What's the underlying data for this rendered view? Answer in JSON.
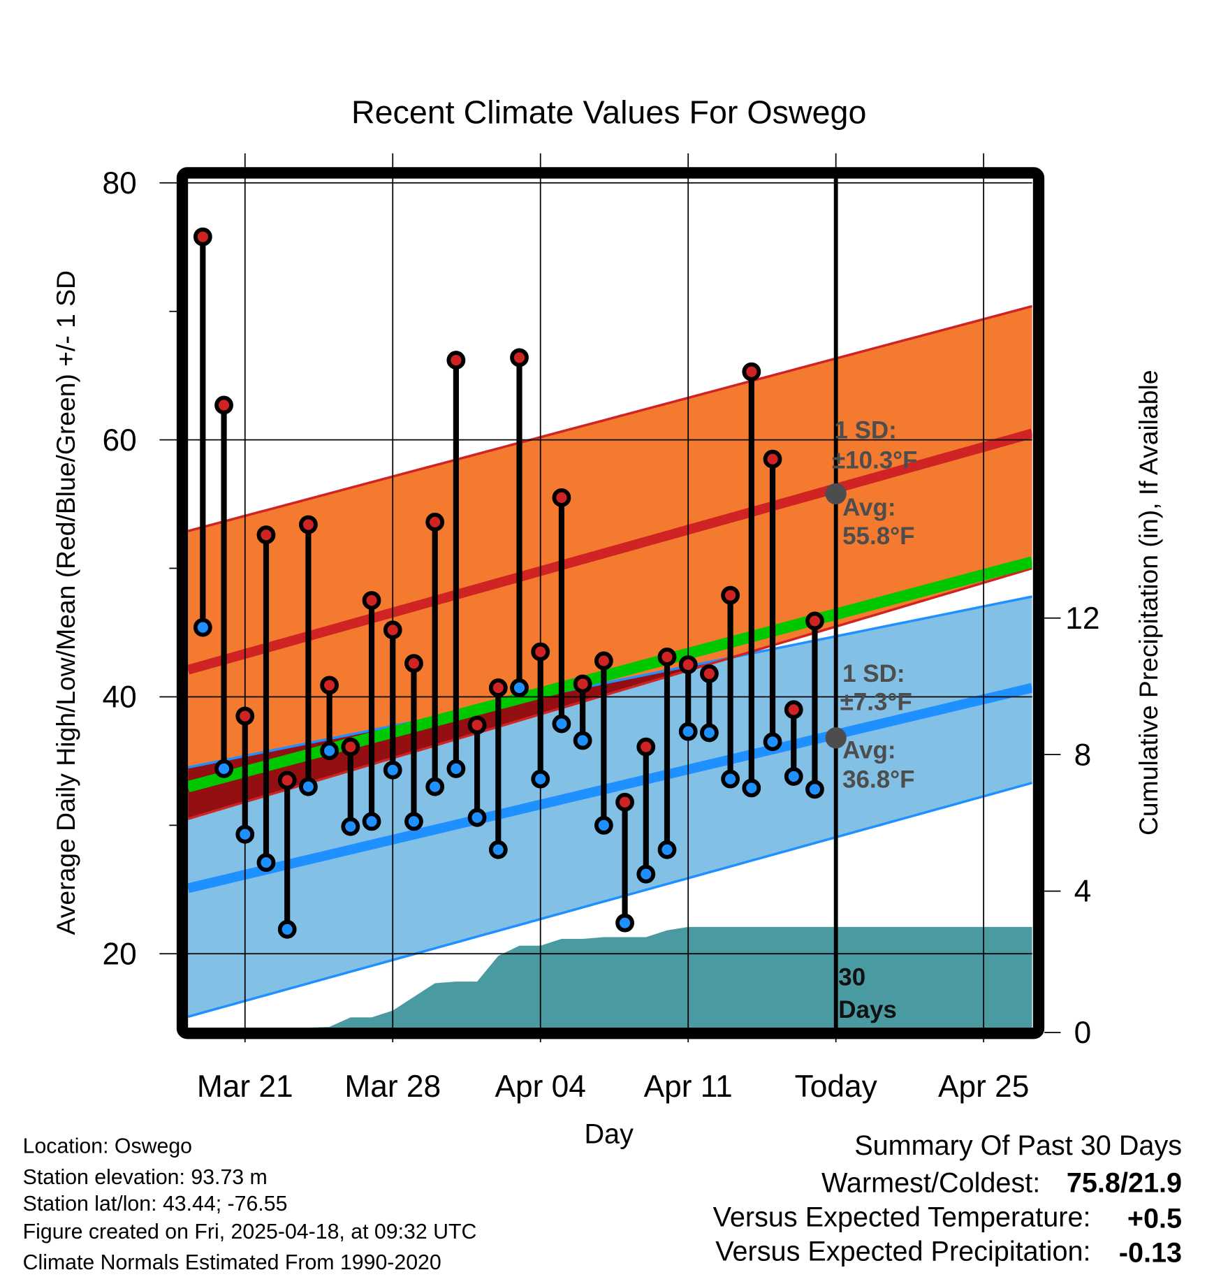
{
  "chart_data": {
    "type": "line",
    "title": "Recent Climate Values For Oswego",
    "xlabel": "Day",
    "ylabel": "Average Daily High/Low/Mean (Red/Blue/Green) +/- 1 SD",
    "y2label": "Cumulative Precipitation (in), If Available",
    "x_unit": "days since Mar 21",
    "xlim": [
      -2.7,
      37.3
    ],
    "ylim": [
      14.25,
      80.4
    ],
    "y2lim": [
      0,
      24.9
    ],
    "x_ticks": [
      {
        "day": 0,
        "label": "Mar 21"
      },
      {
        "day": 7,
        "label": "Mar 28"
      },
      {
        "day": 14,
        "label": "Apr 04"
      },
      {
        "day": 21,
        "label": "Apr 11"
      },
      {
        "day": 28,
        "label": "Today"
      },
      {
        "day": 35,
        "label": "Apr 25"
      }
    ],
    "y_ticks": [
      {
        "value": 20,
        "label": "20"
      },
      {
        "value": 40,
        "label": "40"
      },
      {
        "value": 60,
        "label": "60"
      },
      {
        "value": 80,
        "label": "80"
      }
    ],
    "y_minor_ticks": [
      30,
      50,
      70
    ],
    "y2_ticks": [
      {
        "value": 0,
        "label": "0"
      },
      {
        "value": 4,
        "label": "4"
      },
      {
        "value": 8,
        "label": "8"
      },
      {
        "value": 12,
        "label": "12"
      }
    ],
    "grid": true,
    "today_day": 28,
    "observed": {
      "days": [
        -2,
        -1,
        0,
        1,
        2,
        3,
        4,
        5,
        6,
        7,
        8,
        9,
        10,
        11,
        12,
        13,
        14,
        15,
        16,
        17,
        18,
        19,
        20,
        21,
        22,
        23,
        24,
        25,
        26,
        27
      ],
      "highs": [
        75.8,
        62.7,
        38.5,
        52.6,
        33.5,
        53.4,
        40.9,
        36.1,
        47.5,
        45.2,
        42.6,
        53.6,
        66.2,
        37.8,
        40.7,
        66.4,
        43.5,
        55.5,
        41.0,
        42.8,
        31.8,
        36.1,
        43.1,
        42.5,
        41.8,
        47.9,
        65.3,
        58.5,
        39.0,
        45.9
      ],
      "lows": [
        45.4,
        34.4,
        29.3,
        27.1,
        21.9,
        33.0,
        35.8,
        29.9,
        30.3,
        34.3,
        30.3,
        33.0,
        34.4,
        30.6,
        28.1,
        40.7,
        33.6,
        37.9,
        36.6,
        30.0,
        22.4,
        26.2,
        28.1,
        37.3,
        37.2,
        33.6,
        32.9,
        36.5,
        33.8,
        32.8
      ],
      "cumulative_precip": [
        0,
        0,
        0,
        0,
        0,
        0,
        0.02,
        0.3,
        0.3,
        0.5,
        0.9,
        1.3,
        1.35,
        1.35,
        2.1,
        2.4,
        2.4,
        2.6,
        2.6,
        2.65,
        2.65,
        2.65,
        2.85,
        2.95,
        2.95,
        2.95,
        2.95,
        2.95,
        2.95,
        2.95
      ]
    },
    "normals": {
      "high_avg": [
        42.1,
        60.5
      ],
      "high_upper": [
        52.9,
        70.4
      ],
      "high_lower": [
        30.5,
        50.0
      ],
      "low_avg": [
        25.1,
        40.7
      ],
      "low_upper": [
        34.5,
        47.8
      ],
      "low_lower": [
        15.1,
        33.3
      ],
      "mean": [
        33.0,
        50.5
      ]
    },
    "annotations": {
      "high_sd_label": "1 SD:",
      "high_sd_value": "±10.3°F",
      "high_avg_label": "Avg:",
      "high_avg_value": "55.8°F",
      "low_sd_label": "1 SD:",
      "low_sd_value": "±7.3°F",
      "low_avg_label": "Avg:",
      "low_avg_value": "36.8°F",
      "days_count": "30",
      "days_label": "Days",
      "today_high_avg": 55.8,
      "today_low_avg": 36.8
    }
  },
  "footer_left": [
    "Location: Oswego",
    "Station elevation: 93.73 m",
    "Station lat/lon: 43.44; -76.55",
    "Figure created on Fri, 2025-04-18, at 09:32 UTC",
    "Climate Normals Estimated From 1990-2020"
  ],
  "summary": {
    "heading": "Summary Of Past 30 Days",
    "warm_cold_label": "Warmest/Coldest:",
    "warm_cold_value": "75.8/21.9",
    "temp_label": "Versus Expected Temperature:",
    "temp_value": "+0.5",
    "precip_label": "Versus Expected Precipitation:",
    "precip_value": "-0.13"
  },
  "colors": {
    "orange_band": "#f47a30",
    "blue_band": "#82c0e6",
    "overlap": "#930f12",
    "high_line": "#d02424",
    "low_line": "#1e90ff",
    "mean_line": "#00c800",
    "precip": "#4a9aa2",
    "annotation": "#4d4d4d",
    "temp_value": "#d02020",
    "precip_value": "#a0522d"
  }
}
